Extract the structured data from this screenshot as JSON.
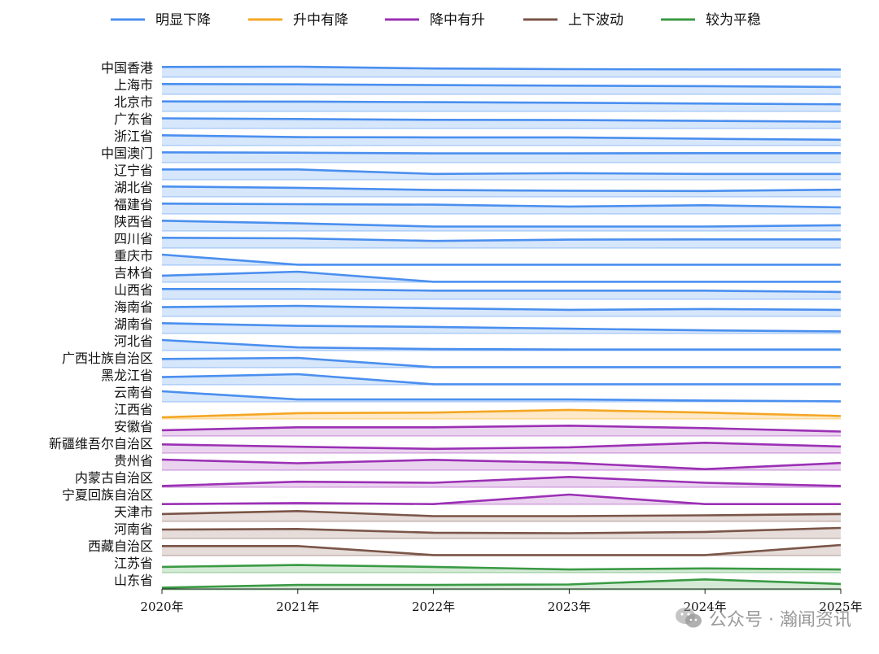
{
  "chart_data": {
    "type": "area",
    "x": [
      "2020年",
      "2021年",
      "2022年",
      "2023年",
      "2024年",
      "2025年"
    ],
    "ylim_per_row": [
      0,
      1
    ],
    "grid": false,
    "legend_position": "top",
    "categories": [
      {
        "name": "明显下降",
        "color": "#4a8fef",
        "fill": "#d6e6fb"
      },
      {
        "name": "升中有降",
        "color": "#f5a623",
        "fill": "#fde9c8"
      },
      {
        "name": "降中有升",
        "color": "#9b30b5",
        "fill": "#ead3ef"
      },
      {
        "name": "上下波动",
        "color": "#7a5548",
        "fill": "#e6dcd9"
      },
      {
        "name": "较为平稳",
        "color": "#3a9a44",
        "fill": "#d4ead5"
      }
    ],
    "series": [
      {
        "name": "中国香港",
        "group": 0,
        "values": [
          0.98,
          1.0,
          0.83,
          0.77,
          0.75,
          0.73
        ]
      },
      {
        "name": "上海市",
        "group": 0,
        "values": [
          0.98,
          0.95,
          0.88,
          0.82,
          0.78,
          0.7
        ]
      },
      {
        "name": "北京市",
        "group": 0,
        "values": [
          0.95,
          0.93,
          0.88,
          0.82,
          0.75,
          0.68
        ]
      },
      {
        "name": "广东省",
        "group": 0,
        "values": [
          0.96,
          0.9,
          0.82,
          0.8,
          0.72,
          0.65
        ]
      },
      {
        "name": "浙江省",
        "group": 0,
        "values": [
          0.98,
          0.8,
          0.78,
          0.78,
          0.65,
          0.55
        ]
      },
      {
        "name": "中国澳门",
        "group": 0,
        "values": [
          0.98,
          0.95,
          0.88,
          0.88,
          0.9,
          0.9
        ]
      },
      {
        "name": "辽宁省",
        "group": 0,
        "values": [
          0.98,
          0.98,
          0.55,
          0.62,
          0.55,
          0.55
        ]
      },
      {
        "name": "湖北省",
        "group": 0,
        "values": [
          0.98,
          0.85,
          0.65,
          0.58,
          0.55,
          0.68
        ]
      },
      {
        "name": "福建省",
        "group": 0,
        "values": [
          0.98,
          0.92,
          0.88,
          0.7,
          0.82,
          0.62
        ]
      },
      {
        "name": "陕西省",
        "group": 0,
        "values": [
          0.98,
          0.72,
          0.42,
          0.42,
          0.42,
          0.55
        ]
      },
      {
        "name": "四川省",
        "group": 0,
        "values": [
          0.98,
          0.92,
          0.68,
          0.8,
          0.82,
          0.82
        ]
      },
      {
        "name": "重庆市",
        "group": 0,
        "values": [
          1.0,
          0.05,
          0.05,
          0.05,
          0.05,
          0.05
        ]
      },
      {
        "name": "吉林省",
        "group": 0,
        "values": [
          0.62,
          1.0,
          0.05,
          0.05,
          0.05,
          0.05
        ]
      },
      {
        "name": "山西省",
        "group": 0,
        "values": [
          0.98,
          0.98,
          0.82,
          0.82,
          0.82,
          0.7
        ]
      },
      {
        "name": "海南省",
        "group": 0,
        "values": [
          0.88,
          1.0,
          0.78,
          0.62,
          0.7,
          0.62
        ]
      },
      {
        "name": "湖南省",
        "group": 0,
        "values": [
          0.98,
          0.72,
          0.62,
          0.45,
          0.3,
          0.2
        ]
      },
      {
        "name": "河北省",
        "group": 0,
        "values": [
          1.0,
          0.3,
          0.15,
          0.1,
          0.1,
          0.1
        ]
      },
      {
        "name": "广西壮族自治区",
        "group": 0,
        "values": [
          0.82,
          0.92,
          0.05,
          0.05,
          0.05,
          0.05
        ]
      },
      {
        "name": "黑龙江省",
        "group": 0,
        "values": [
          0.72,
          1.0,
          0.05,
          0.05,
          0.05,
          0.05
        ]
      },
      {
        "name": "云南省",
        "group": 0,
        "values": [
          1.0,
          0.22,
          0.22,
          0.22,
          0.12,
          0.05
        ]
      },
      {
        "name": "江西省",
        "group": 1,
        "values": [
          0.15,
          0.55,
          0.6,
          0.85,
          0.6,
          0.28
        ]
      },
      {
        "name": "安徽省",
        "group": 2,
        "values": [
          0.55,
          0.82,
          0.82,
          0.98,
          0.75,
          0.42
        ]
      },
      {
        "name": "新疆维吾尔自治区",
        "group": 2,
        "values": [
          0.82,
          0.6,
          0.4,
          0.55,
          0.98,
          0.62
        ]
      },
      {
        "name": "贵州省",
        "group": 2,
        "values": [
          1.0,
          0.65,
          0.98,
          0.7,
          0.1,
          0.68
        ]
      },
      {
        "name": "内蒙古自治区",
        "group": 2,
        "values": [
          0.12,
          0.52,
          0.42,
          0.98,
          0.42,
          0.12
        ]
      },
      {
        "name": "宁夏回族自治区",
        "group": 2,
        "values": [
          0.02,
          0.12,
          0.02,
          0.92,
          0.02,
          0.02
        ]
      },
      {
        "name": "天津市",
        "group": 3,
        "values": [
          0.7,
          0.98,
          0.5,
          0.5,
          0.58,
          0.7
        ]
      },
      {
        "name": "河南省",
        "group": 3,
        "values": [
          0.85,
          0.9,
          0.55,
          0.5,
          0.62,
          1.0
        ]
      },
      {
        "name": "西藏自治区",
        "group": 3,
        "values": [
          0.9,
          0.9,
          0.05,
          0.05,
          0.05,
          1.0
        ]
      },
      {
        "name": "江苏省",
        "group": 4,
        "values": [
          0.55,
          0.72,
          0.55,
          0.3,
          0.4,
          0.3
        ]
      },
      {
        "name": "山东省",
        "group": 4,
        "values": [
          0.2,
          0.45,
          0.45,
          0.5,
          0.98,
          0.55
        ]
      }
    ]
  },
  "watermark": {
    "text": "公众号 · 瀚闻资讯"
  }
}
